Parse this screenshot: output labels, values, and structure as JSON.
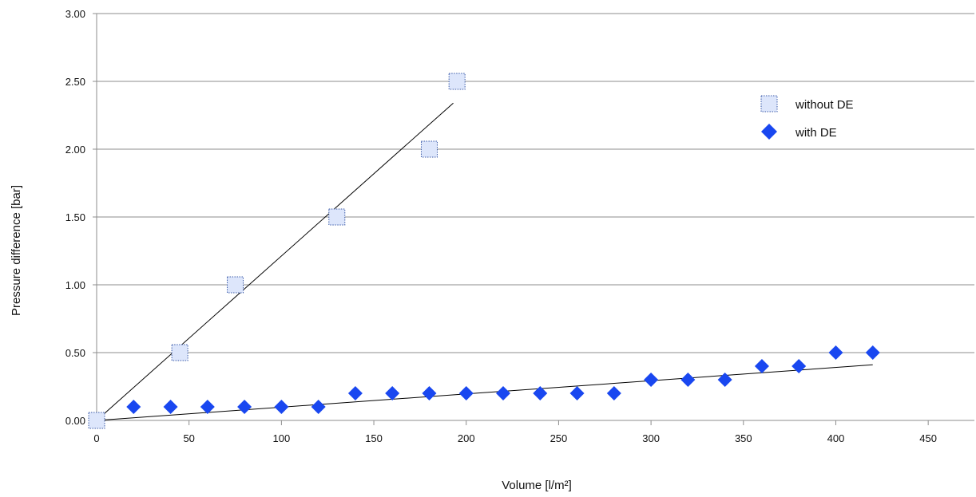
{
  "chart_data": {
    "type": "scatter",
    "xlabel": "Volume [l/m²]",
    "ylabel": "Pressure difference [bar]",
    "xlim": [
      0,
      475
    ],
    "ylim": [
      0,
      3
    ],
    "x_ticks": [
      "0",
      "50",
      "100",
      "150",
      "200",
      "250",
      "300",
      "350",
      "400",
      "450"
    ],
    "y_ticks": [
      "0.00",
      "0.50",
      "1.00",
      "1.50",
      "2.00",
      "2.50",
      "3.00"
    ],
    "grid": "horizontal",
    "legend_position": "top-right",
    "series": [
      {
        "name": "without DE",
        "marker": "square",
        "color": "#dde6fb",
        "stroke": "#3a5aa8",
        "x": [
          0,
          45,
          75,
          130,
          180,
          195
        ],
        "y": [
          0.0,
          0.5,
          1.0,
          1.5,
          2.0,
          2.5
        ],
        "trendline": {
          "x": [
            0,
            193
          ],
          "y": [
            0.0,
            2.34
          ]
        }
      },
      {
        "name": "with DE",
        "marker": "diamond",
        "color": "#1947f0",
        "x": [
          0,
          20,
          40,
          60,
          80,
          100,
          120,
          140,
          160,
          180,
          200,
          220,
          240,
          260,
          280,
          300,
          320,
          340,
          360,
          380,
          400,
          420
        ],
        "y": [
          0.0,
          0.1,
          0.1,
          0.1,
          0.1,
          0.1,
          0.1,
          0.2,
          0.2,
          0.2,
          0.2,
          0.2,
          0.2,
          0.2,
          0.2,
          0.3,
          0.3,
          0.3,
          0.4,
          0.4,
          0.5,
          0.5
        ],
        "trendline": {
          "x": [
            0,
            420
          ],
          "y": [
            0.0,
            0.41
          ]
        }
      }
    ]
  }
}
